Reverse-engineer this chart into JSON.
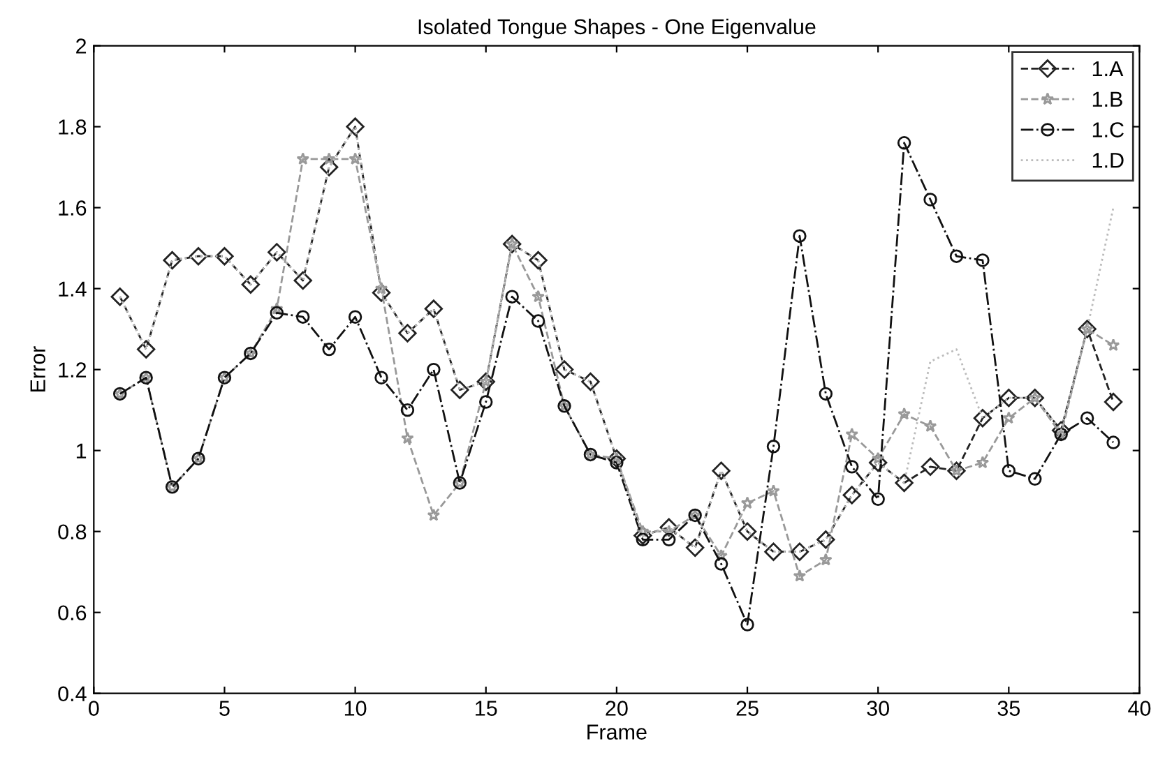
{
  "chart_data": {
    "type": "line",
    "title": "Isolated Tongue Shapes - One Eigenvalue",
    "xlabel": "Frame",
    "ylabel": "Error",
    "x": [
      1,
      2,
      3,
      4,
      5,
      6,
      7,
      8,
      9,
      10,
      11,
      12,
      13,
      14,
      15,
      16,
      17,
      18,
      19,
      20,
      21,
      22,
      23,
      24,
      25,
      26,
      27,
      28,
      29,
      30,
      31,
      32,
      33,
      34,
      35,
      36,
      37,
      38,
      39
    ],
    "series": [
      {
        "name": "1.A",
        "color": "#222222",
        "marker": "diamond",
        "line_style": "dashed",
        "values": [
          1.38,
          1.25,
          1.47,
          1.48,
          1.48,
          1.41,
          1.49,
          1.42,
          1.7,
          1.8,
          1.39,
          1.29,
          1.35,
          1.15,
          1.17,
          1.51,
          1.47,
          1.2,
          1.17,
          0.98,
          0.79,
          0.81,
          0.76,
          0.95,
          0.8,
          0.75,
          0.75,
          0.78,
          0.89,
          0.97,
          0.92,
          0.96,
          0.95,
          1.08,
          1.13,
          1.13,
          1.05,
          1.3,
          1.12
        ]
      },
      {
        "name": "1.B",
        "color": "#999999",
        "marker": "star",
        "line_style": "dashed",
        "values": [
          1.14,
          1.18,
          0.91,
          0.98,
          1.18,
          1.24,
          1.35,
          1.72,
          1.72,
          1.72,
          1.4,
          1.03,
          0.84,
          0.92,
          1.17,
          1.51,
          1.38,
          1.11,
          0.99,
          0.98,
          0.8,
          0.8,
          0.84,
          0.74,
          0.87,
          0.9,
          0.69,
          0.73,
          1.04,
          0.98,
          1.09,
          1.06,
          0.95,
          0.97,
          1.08,
          1.13,
          1.04,
          1.3,
          1.26
        ]
      },
      {
        "name": "1.C",
        "color": "#111111",
        "marker": "circle",
        "line_style": "dashdot",
        "values": [
          1.14,
          1.18,
          0.91,
          0.98,
          1.18,
          1.24,
          1.34,
          1.33,
          1.25,
          1.33,
          1.18,
          1.1,
          1.2,
          0.92,
          1.12,
          1.38,
          1.32,
          1.11,
          0.99,
          0.97,
          0.78,
          0.78,
          0.84,
          0.72,
          0.57,
          1.01,
          1.53,
          1.14,
          0.96,
          0.88,
          1.76,
          1.62,
          1.48,
          1.47,
          0.95,
          0.93,
          1.04,
          1.08,
          1.02
        ]
      },
      {
        "name": "1.D",
        "color": "#bbbbbb",
        "marker": "none",
        "line_style": "dotted",
        "values": [
          1.38,
          1.25,
          1.47,
          1.48,
          1.48,
          1.41,
          1.49,
          1.42,
          1.7,
          1.8,
          1.39,
          1.29,
          1.35,
          1.15,
          1.17,
          1.51,
          1.47,
          1.2,
          1.17,
          0.98,
          0.79,
          0.81,
          0.76,
          0.95,
          0.8,
          0.75,
          0.75,
          0.78,
          0.89,
          0.97,
          0.92,
          1.22,
          1.25,
          1.08,
          1.13,
          1.13,
          1.05,
          1.3,
          1.6
        ]
      }
    ],
    "xlim": [
      0,
      40
    ],
    "xticks": [
      0,
      5,
      10,
      15,
      20,
      25,
      30,
      35,
      40
    ],
    "ylim": [
      0.4,
      2
    ],
    "yticks": [
      0.4,
      0.6,
      0.8,
      1,
      1.2,
      1.4,
      1.6,
      1.8,
      2
    ],
    "grid": false,
    "legend": "top right"
  }
}
